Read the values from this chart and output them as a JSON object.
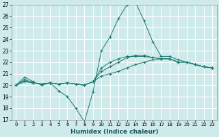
{
  "xlabel": "Humidex (Indice chaleur)",
  "bg_color": "#ceeaea",
  "grid_color": "#ffffff",
  "line_color": "#1a7a6e",
  "ylim": [
    17,
    27
  ],
  "xlim": [
    -0.5,
    23.5
  ],
  "yticks": [
    17,
    18,
    19,
    20,
    21,
    22,
    23,
    24,
    25,
    26,
    27
  ],
  "xticks": [
    0,
    1,
    2,
    3,
    4,
    5,
    6,
    7,
    8,
    9,
    10,
    11,
    12,
    13,
    14,
    15,
    16,
    17,
    18,
    19,
    20,
    21,
    22,
    23
  ],
  "series": [
    {
      "x": [
        0,
        1,
        2,
        3,
        4,
        5,
        6,
        7,
        8,
        9,
        10,
        11,
        12,
        13,
        14,
        15,
        16,
        17,
        18,
        19,
        20,
        21,
        22,
        23
      ],
      "y": [
        20.0,
        20.7,
        20.3,
        20.0,
        20.2,
        19.5,
        19.0,
        18.0,
        16.8,
        19.4,
        23.0,
        24.2,
        25.8,
        27.0,
        27.2,
        25.6,
        23.8,
        22.5,
        22.5,
        22.2,
        22.0,
        21.8,
        21.6,
        21.5
      ]
    },
    {
      "x": [
        0,
        1,
        2,
        3,
        4,
        5,
        6,
        7,
        8,
        9,
        10,
        11,
        12,
        13,
        14,
        15,
        16,
        17,
        18,
        19,
        20,
        21,
        22,
        23
      ],
      "y": [
        20.0,
        20.3,
        20.2,
        20.1,
        20.2,
        20.1,
        20.2,
        20.1,
        20.0,
        20.3,
        20.8,
        21.0,
        21.2,
        21.5,
        21.8,
        22.0,
        22.2,
        22.3,
        22.3,
        22.0,
        22.0,
        21.8,
        21.6,
        21.5
      ]
    },
    {
      "x": [
        0,
        1,
        2,
        3,
        4,
        5,
        6,
        7,
        8,
        9,
        10,
        11,
        12,
        13,
        14,
        15,
        16,
        17,
        18,
        19,
        20,
        21,
        22,
        23
      ],
      "y": [
        20.0,
        20.4,
        20.2,
        20.1,
        20.2,
        20.1,
        20.2,
        20.1,
        20.0,
        20.3,
        21.2,
        21.6,
        22.0,
        22.4,
        22.6,
        22.6,
        22.4,
        22.3,
        22.3,
        22.0,
        22.0,
        21.8,
        21.6,
        21.5
      ]
    },
    {
      "x": [
        0,
        1,
        2,
        3,
        4,
        5,
        6,
        7,
        8,
        9,
        10,
        11,
        12,
        13,
        14,
        15,
        16,
        17,
        18,
        19,
        20,
        21,
        22,
        23
      ],
      "y": [
        20.0,
        20.5,
        20.2,
        20.1,
        20.2,
        20.1,
        20.2,
        20.1,
        20.0,
        20.3,
        21.5,
        22.0,
        22.3,
        22.5,
        22.5,
        22.5,
        22.4,
        22.3,
        22.3,
        22.0,
        22.0,
        21.8,
        21.6,
        21.5
      ]
    }
  ]
}
